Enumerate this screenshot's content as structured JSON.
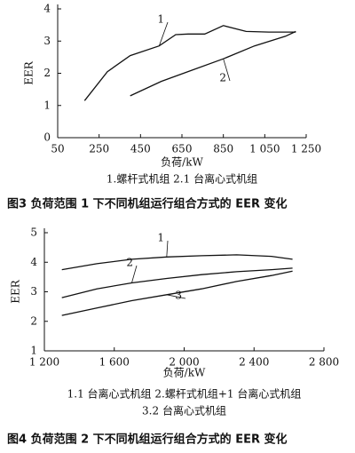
{
  "chart_data": [
    {
      "type": "line",
      "y_label": "EER",
      "x_label": "负荷/kW",
      "note": [
        "1.螺杆式机组 2.1 台离心式机组"
      ],
      "caption": "图3  负荷范围 1 下不同机组运行组合方式的 EER 变化",
      "xlim": [
        50,
        1250
      ],
      "ylim": [
        0,
        4
      ],
      "xticks": [
        50,
        250,
        450,
        650,
        850,
        {
          "value": 1050,
          "label": "1 050"
        },
        {
          "value": 1250,
          "label": "1 250"
        }
      ],
      "yticks": [
        0,
        1,
        2,
        3,
        4
      ],
      "series": [
        {
          "name": "1",
          "color": "#111111",
          "x": [
            180,
            290,
            400,
            540,
            620,
            680,
            760,
            850,
            960,
            1070,
            1200
          ],
          "values": [
            1.15,
            2.05,
            2.55,
            2.85,
            3.2,
            3.22,
            3.22,
            3.48,
            3.3,
            3.28,
            3.28
          ]
        },
        {
          "name": "2",
          "color": "#111111",
          "x": [
            400,
            550,
            700,
            850,
            1000,
            1150,
            1200
          ],
          "values": [
            1.3,
            1.75,
            2.1,
            2.45,
            2.85,
            3.15,
            3.3
          ]
        }
      ]
    },
    {
      "type": "line",
      "y_label": "EER",
      "x_label": "负荷/kW",
      "note": [
        "1.1 台离心式机组 2.螺杆式机组+1 台离心式机组",
        "3.2 台离心式机组"
      ],
      "caption": "图4  负荷范围 2 下不同机组运行组合方式的 EER 变化",
      "xlim": [
        1200,
        2800
      ],
      "ylim": [
        1,
        5
      ],
      "xticks": [
        {
          "value": 1200,
          "label": "1 200"
        },
        {
          "value": 1600,
          "label": "1 600"
        },
        {
          "value": 2000,
          "label": "2 000"
        },
        {
          "value": 2400,
          "label": "2 400"
        },
        {
          "value": 2800,
          "label": "2 800"
        }
      ],
      "yticks": [
        1,
        2,
        3,
        4,
        5
      ],
      "series": [
        {
          "name": "1",
          "color": "#111111",
          "x": [
            1300,
            1500,
            1700,
            1900,
            2100,
            2300,
            2500,
            2620
          ],
          "values": [
            3.75,
            3.95,
            4.1,
            4.18,
            4.22,
            4.25,
            4.2,
            4.1
          ]
        },
        {
          "name": "2",
          "color": "#111111",
          "x": [
            1300,
            1500,
            1700,
            1900,
            2100,
            2300,
            2500,
            2620
          ],
          "values": [
            2.8,
            3.1,
            3.3,
            3.45,
            3.58,
            3.68,
            3.75,
            3.8
          ]
        },
        {
          "name": "3",
          "color": "#111111",
          "x": [
            1300,
            1500,
            1700,
            1900,
            2100,
            2300,
            2500,
            2620
          ],
          "values": [
            2.2,
            2.45,
            2.7,
            2.9,
            3.1,
            3.35,
            3.55,
            3.7
          ]
        }
      ]
    }
  ]
}
